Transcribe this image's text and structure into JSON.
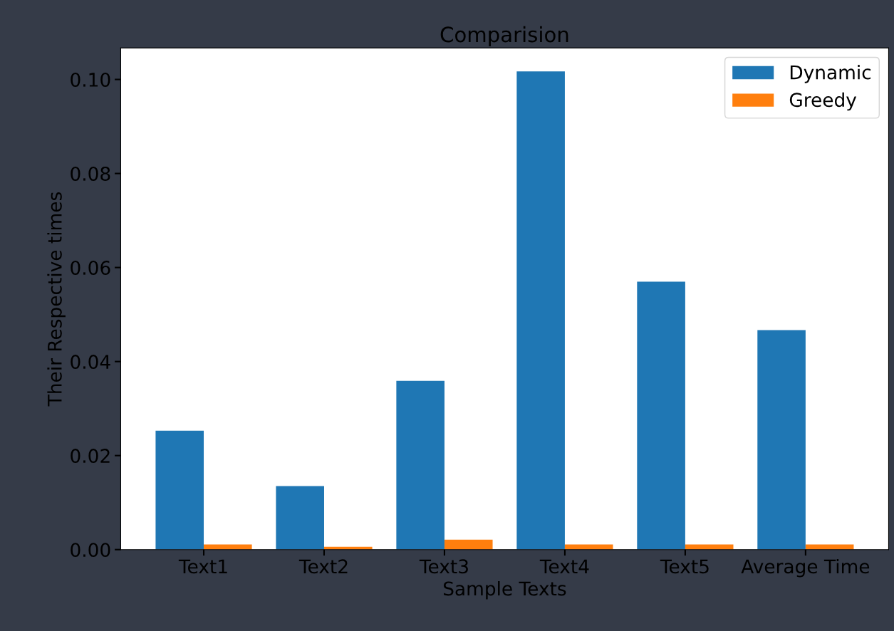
{
  "chart_data": {
    "type": "bar",
    "title": "Comparision",
    "xlabel": "Sample Texts",
    "ylabel": "Their Respective times",
    "categories": [
      "Text1",
      "Text2",
      "Text3",
      "Text4",
      "Text5",
      "Average Time"
    ],
    "series": [
      {
        "name": "Dynamic",
        "color": "#1f77b4",
        "values": [
          0.0253,
          0.0135,
          0.0359,
          0.1017,
          0.057,
          0.0467
        ]
      },
      {
        "name": "Greedy",
        "color": "#ff7f0e",
        "values": [
          0.0011,
          0.0006,
          0.0021,
          0.0011,
          0.0011,
          0.0011
        ]
      }
    ],
    "ylim": [
      0,
      0.1067
    ],
    "yticks": [
      {
        "value": 0,
        "label": "0.00"
      },
      {
        "value": 0.02,
        "label": "0.02"
      },
      {
        "value": 0.04,
        "label": "0.04"
      },
      {
        "value": 0.06,
        "label": "0.06"
      },
      {
        "value": 0.08,
        "label": "0.08"
      },
      {
        "value": 0.1,
        "label": "0.10"
      }
    ],
    "grid": false,
    "legend": "top right"
  }
}
